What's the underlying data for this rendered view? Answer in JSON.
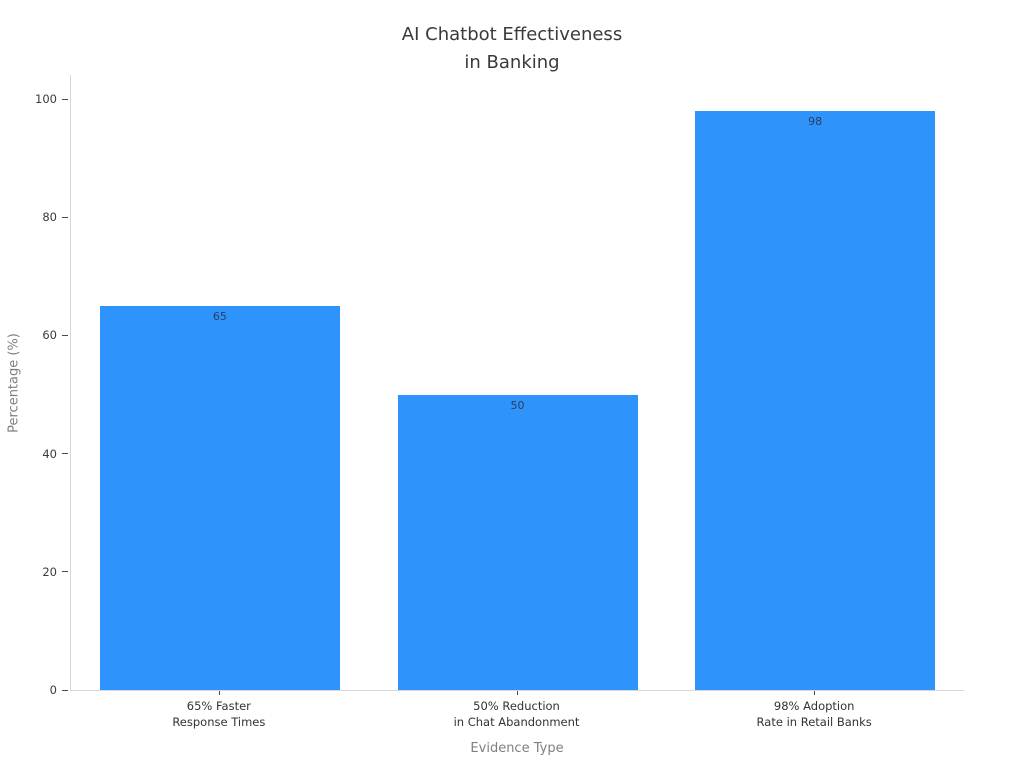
{
  "chart_data": {
    "type": "bar",
    "title": "AI Chatbot Effectiveness\nin Banking",
    "xlabel": "Evidence Type",
    "ylabel": "Percentage (%)",
    "categories": [
      "65% Faster\nResponse Times",
      "50% Reduction\nin Chat Abandonment",
      "98% Adoption\nRate in Retail Banks"
    ],
    "values": [
      65,
      50,
      98
    ],
    "value_labels": [
      "65",
      "50",
      "98"
    ],
    "ylim": [
      0,
      100
    ],
    "y_ticks": [
      "0",
      "20",
      "40",
      "60",
      "80",
      "100"
    ],
    "bar_color": "#2e93fa",
    "spine_color": "#d8d8d8",
    "grid": false,
    "legend_position": "none"
  }
}
